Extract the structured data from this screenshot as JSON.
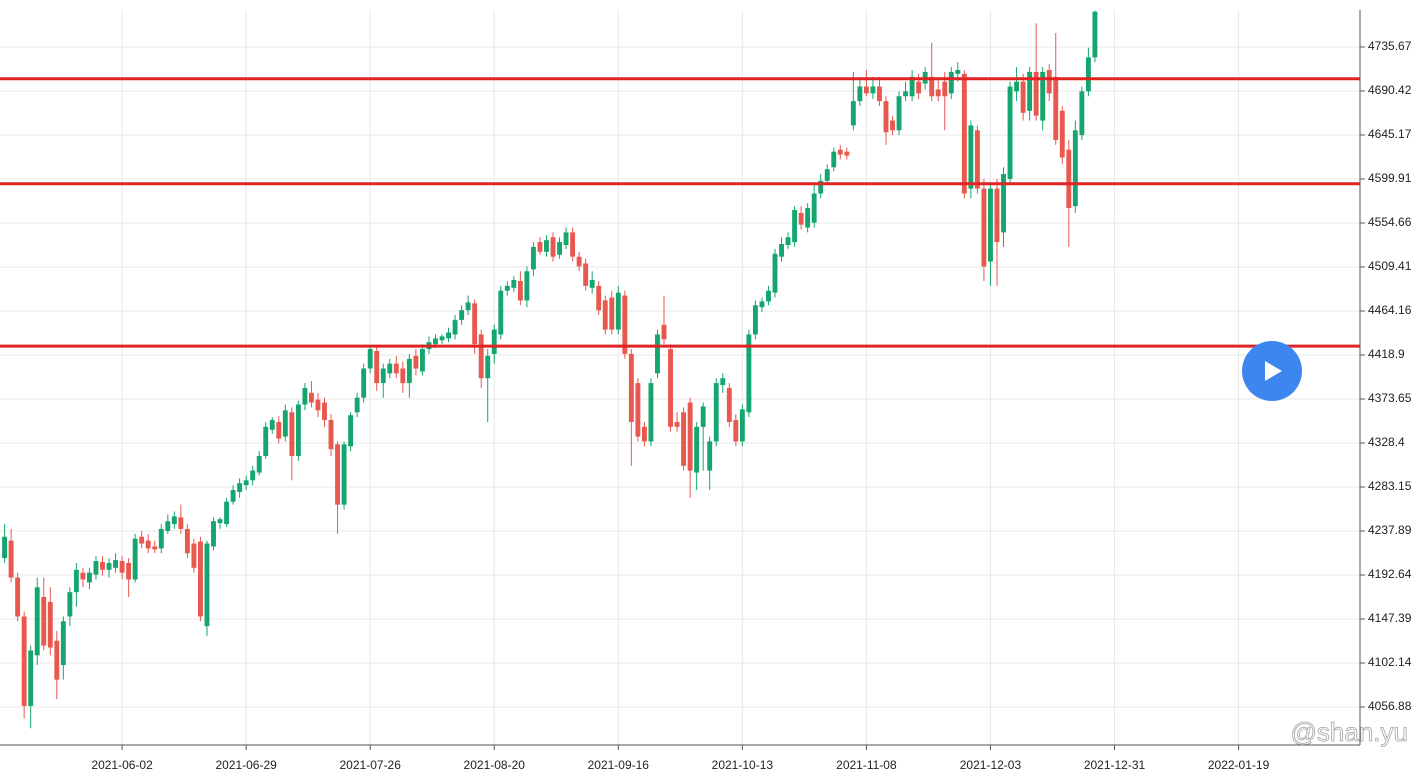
{
  "chart_data": {
    "type": "candlestick",
    "up_color": "#14a66e",
    "down_color": "#e8584f",
    "line_color": "#e02424",
    "xlim": [
      -0.7,
      207.6
    ],
    "ylim": [
      4017.8,
      4773.7
    ],
    "xticks": [
      {
        "value": 18,
        "label": "2021-06-02"
      },
      {
        "value": 37,
        "label": "2021-06-29"
      },
      {
        "value": 56,
        "label": "2021-07-26"
      },
      {
        "value": 75,
        "label": "2021-08-20"
      },
      {
        "value": 94,
        "label": "2021-09-16"
      },
      {
        "value": 113,
        "label": "2021-10-13"
      },
      {
        "value": 132,
        "label": "2021-11-08"
      },
      {
        "value": 151,
        "label": "2021-12-03"
      },
      {
        "value": 170,
        "label": "2021-12-31"
      },
      {
        "value": 189,
        "label": "2022-01-19"
      }
    ],
    "yticks": [
      4056.88,
      4102.14,
      4147.39,
      4192.64,
      4237.89,
      4283.15,
      4328.4,
      4373.65,
      4418.9,
      4464.16,
      4509.41,
      4554.66,
      4599.91,
      4645.17,
      4690.42,
      4735.67
    ],
    "grid": true,
    "hlines": [
      4703,
      4595,
      4428
    ],
    "watermark": "@shan.yu",
    "candles": [
      [
        4210,
        4245,
        4205,
        4232
      ],
      [
        4228,
        4240,
        4185,
        4190
      ],
      [
        4190,
        4195,
        4145,
        4150
      ],
      [
        4150,
        4155,
        4045,
        4058
      ],
      [
        4058,
        4120,
        4035,
        4115
      ],
      [
        4110,
        4190,
        4100,
        4180
      ],
      [
        4170,
        4190,
        4115,
        4120
      ],
      [
        4165,
        4180,
        4110,
        4118
      ],
      [
        4125,
        4135,
        4065,
        4085
      ],
      [
        4100,
        4150,
        4085,
        4145
      ],
      [
        4150,
        4180,
        4140,
        4175
      ],
      [
        4175,
        4205,
        4160,
        4198
      ],
      [
        4195,
        4200,
        4180,
        4188
      ],
      [
        4185,
        4200,
        4178,
        4195
      ],
      [
        4193,
        4212,
        4188,
        4207
      ],
      [
        4206,
        4212,
        4192,
        4198
      ],
      [
        4198,
        4210,
        4190,
        4205
      ],
      [
        4200,
        4215,
        4195,
        4208
      ],
      [
        4207,
        4212,
        4188,
        4195
      ],
      [
        4205,
        4210,
        4170,
        4188
      ],
      [
        4188,
        4235,
        4185,
        4230
      ],
      [
        4232,
        4238,
        4220,
        4225
      ],
      [
        4228,
        4235,
        4215,
        4220
      ],
      [
        4222,
        4228,
        4215,
        4219
      ],
      [
        4220,
        4245,
        4215,
        4240
      ],
      [
        4238,
        4255,
        4235,
        4248
      ],
      [
        4245,
        4258,
        4240,
        4253
      ],
      [
        4252,
        4265,
        4235,
        4240
      ],
      [
        4240,
        4245,
        4210,
        4215
      ],
      [
        4225,
        4230,
        4195,
        4200
      ],
      [
        4227,
        4232,
        4145,
        4150
      ],
      [
        4140,
        4228,
        4130,
        4225
      ],
      [
        4222,
        4252,
        4218,
        4248
      ],
      [
        4246,
        4252,
        4240,
        4250
      ],
      [
        4245,
        4272,
        4242,
        4268
      ],
      [
        4268,
        4285,
        4265,
        4280
      ],
      [
        4278,
        4292,
        4272,
        4287
      ],
      [
        4285,
        4295,
        4280,
        4290
      ],
      [
        4290,
        4305,
        4285,
        4300
      ],
      [
        4298,
        4320,
        4295,
        4315
      ],
      [
        4315,
        4350,
        4312,
        4345
      ],
      [
        4342,
        4355,
        4338,
        4352
      ],
      [
        4350,
        4356,
        4328,
        4333
      ],
      [
        4335,
        4368,
        4330,
        4362
      ],
      [
        4360,
        4365,
        4290,
        4315
      ],
      [
        4315,
        4372,
        4310,
        4368
      ],
      [
        4368,
        4390,
        4362,
        4385
      ],
      [
        4380,
        4392,
        4365,
        4370
      ],
      [
        4373,
        4380,
        4355,
        4362
      ],
      [
        4370,
        4375,
        4345,
        4352
      ],
      [
        4352,
        4358,
        4315,
        4322
      ],
      [
        4327,
        4330,
        4235,
        4265
      ],
      [
        4265,
        4330,
        4260,
        4327
      ],
      [
        4325,
        4360,
        4320,
        4357
      ],
      [
        4360,
        4380,
        4355,
        4375
      ],
      [
        4375,
        4410,
        4370,
        4405
      ],
      [
        4405,
        4428,
        4400,
        4425
      ],
      [
        4423,
        4428,
        4382,
        4390
      ],
      [
        4390,
        4410,
        4375,
        4405
      ],
      [
        4400,
        4415,
        4395,
        4410
      ],
      [
        4410,
        4418,
        4395,
        4400
      ],
      [
        4405,
        4412,
        4380,
        4390
      ],
      [
        4390,
        4420,
        4375,
        4415
      ],
      [
        4418,
        4425,
        4398,
        4405
      ],
      [
        4402,
        4430,
        4398,
        4425
      ],
      [
        4425,
        4438,
        4420,
        4432
      ],
      [
        4430,
        4440,
        4426,
        4436
      ],
      [
        4434,
        4440,
        4430,
        4438
      ],
      [
        4436,
        4447,
        4432,
        4442
      ],
      [
        4440,
        4460,
        4435,
        4455
      ],
      [
        4455,
        4470,
        4450,
        4465
      ],
      [
        4465,
        4480,
        4460,
        4473
      ],
      [
        4472,
        4476,
        4420,
        4430
      ],
      [
        4440,
        4445,
        4385,
        4395
      ],
      [
        4395,
        4425,
        4350,
        4418
      ],
      [
        4420,
        4450,
        4410,
        4445
      ],
      [
        4440,
        4490,
        4435,
        4485
      ],
      [
        4485,
        4495,
        4480,
        4490
      ],
      [
        4488,
        4500,
        4484,
        4496
      ],
      [
        4495,
        4505,
        4470,
        4475
      ],
      [
        4475,
        4510,
        4468,
        4505
      ],
      [
        4507,
        4535,
        4500,
        4530
      ],
      [
        4535,
        4540,
        4522,
        4525
      ],
      [
        4525,
        4542,
        4520,
        4537
      ],
      [
        4540,
        4545,
        4515,
        4520
      ],
      [
        4522,
        4540,
        4518,
        4535
      ],
      [
        4532,
        4550,
        4528,
        4545
      ],
      [
        4545,
        4550,
        4515,
        4520
      ],
      [
        4520,
        4525,
        4505,
        4510
      ],
      [
        4513,
        4518,
        4485,
        4490
      ],
      [
        4488,
        4505,
        4482,
        4496
      ],
      [
        4490,
        4495,
        4460,
        4465
      ],
      [
        4475,
        4480,
        4440,
        4445
      ],
      [
        4478,
        4485,
        4440,
        4445
      ],
      [
        4445,
        4490,
        4440,
        4483
      ],
      [
        4480,
        4485,
        4415,
        4420
      ],
      [
        4420,
        4425,
        4305,
        4350
      ],
      [
        4390,
        4395,
        4330,
        4335
      ],
      [
        4345,
        4350,
        4325,
        4330
      ],
      [
        4330,
        4395,
        4325,
        4390
      ],
      [
        4400,
        4445,
        4395,
        4440
      ],
      [
        4450,
        4480,
        4430,
        4435
      ],
      [
        4425,
        4430,
        4340,
        4345
      ],
      [
        4350,
        4360,
        4340,
        4345
      ],
      [
        4360,
        4365,
        4300,
        4305
      ],
      [
        4370,
        4375,
        4272,
        4300
      ],
      [
        4298,
        4350,
        4280,
        4345
      ],
      [
        4345,
        4370,
        4300,
        4366
      ],
      [
        4300,
        4335,
        4280,
        4330
      ],
      [
        4330,
        4395,
        4325,
        4390
      ],
      [
        4388,
        4400,
        4380,
        4395
      ],
      [
        4385,
        4390,
        4345,
        4350
      ],
      [
        4352,
        4358,
        4325,
        4330
      ],
      [
        4330,
        4368,
        4325,
        4363
      ],
      [
        4360,
        4445,
        4355,
        4440
      ],
      [
        4440,
        4475,
        4435,
        4470
      ],
      [
        4468,
        4478,
        4463,
        4474
      ],
      [
        4474,
        4490,
        4470,
        4485
      ],
      [
        4483,
        4528,
        4478,
        4523
      ],
      [
        4520,
        4540,
        4515,
        4533
      ],
      [
        4532,
        4545,
        4528,
        4540
      ],
      [
        4535,
        4572,
        4530,
        4568
      ],
      [
        4565,
        4572,
        4548,
        4553
      ],
      [
        4550,
        4575,
        4545,
        4570
      ],
      [
        4555,
        4595,
        4550,
        4585
      ],
      [
        4585,
        4605,
        4580,
        4598
      ],
      [
        4598,
        4615,
        4595,
        4610
      ],
      [
        4612,
        4632,
        4608,
        4628
      ],
      [
        4630,
        4635,
        4620,
        4625
      ],
      [
        4628,
        4632,
        4620,
        4624
      ],
      [
        4655,
        4710,
        4650,
        4680
      ],
      [
        4680,
        4705,
        4675,
        4695
      ],
      [
        4695,
        4712,
        4685,
        4688
      ],
      [
        4688,
        4705,
        4682,
        4695
      ],
      [
        4695,
        4705,
        4675,
        4680
      ],
      [
        4680,
        4685,
        4635,
        4648
      ],
      [
        4660,
        4665,
        4645,
        4650
      ],
      [
        4650,
        4690,
        4645,
        4685
      ],
      [
        4685,
        4700,
        4680,
        4690
      ],
      [
        4685,
        4712,
        4680,
        4705
      ],
      [
        4700,
        4708,
        4682,
        4688
      ],
      [
        4698,
        4715,
        4692,
        4710
      ],
      [
        4705,
        4740,
        4680,
        4685
      ],
      [
        4692,
        4705,
        4680,
        4685
      ],
      [
        4700,
        4710,
        4650,
        4685
      ],
      [
        4688,
        4715,
        4682,
        4710
      ],
      [
        4708,
        4720,
        4700,
        4712
      ],
      [
        4708,
        4712,
        4580,
        4585
      ],
      [
        4590,
        4660,
        4580,
        4655
      ],
      [
        4650,
        4655,
        4585,
        4590
      ],
      [
        4590,
        4600,
        4495,
        4510
      ],
      [
        4515,
        4595,
        4490,
        4590
      ],
      [
        4590,
        4600,
        4490,
        4535
      ],
      [
        4545,
        4612,
        4530,
        4605
      ],
      [
        4600,
        4700,
        4595,
        4695
      ],
      [
        4690,
        4715,
        4680,
        4700
      ],
      [
        4700,
        4708,
        4660,
        4668
      ],
      [
        4670,
        4715,
        4660,
        4710
      ],
      [
        4710,
        4760,
        4660,
        4665
      ],
      [
        4660,
        4715,
        4650,
        4710
      ],
      [
        4712,
        4718,
        4680,
        4688
      ],
      [
        4705,
        4750,
        4635,
        4640
      ],
      [
        4670,
        4675,
        4615,
        4622
      ],
      [
        4630,
        4640,
        4530,
        4570
      ],
      [
        4572,
        4660,
        4565,
        4650
      ],
      [
        4645,
        4695,
        4640,
        4690
      ],
      [
        4690,
        4735,
        4685,
        4725
      ],
      [
        4725,
        4773,
        4720,
        4772
      ]
    ]
  }
}
